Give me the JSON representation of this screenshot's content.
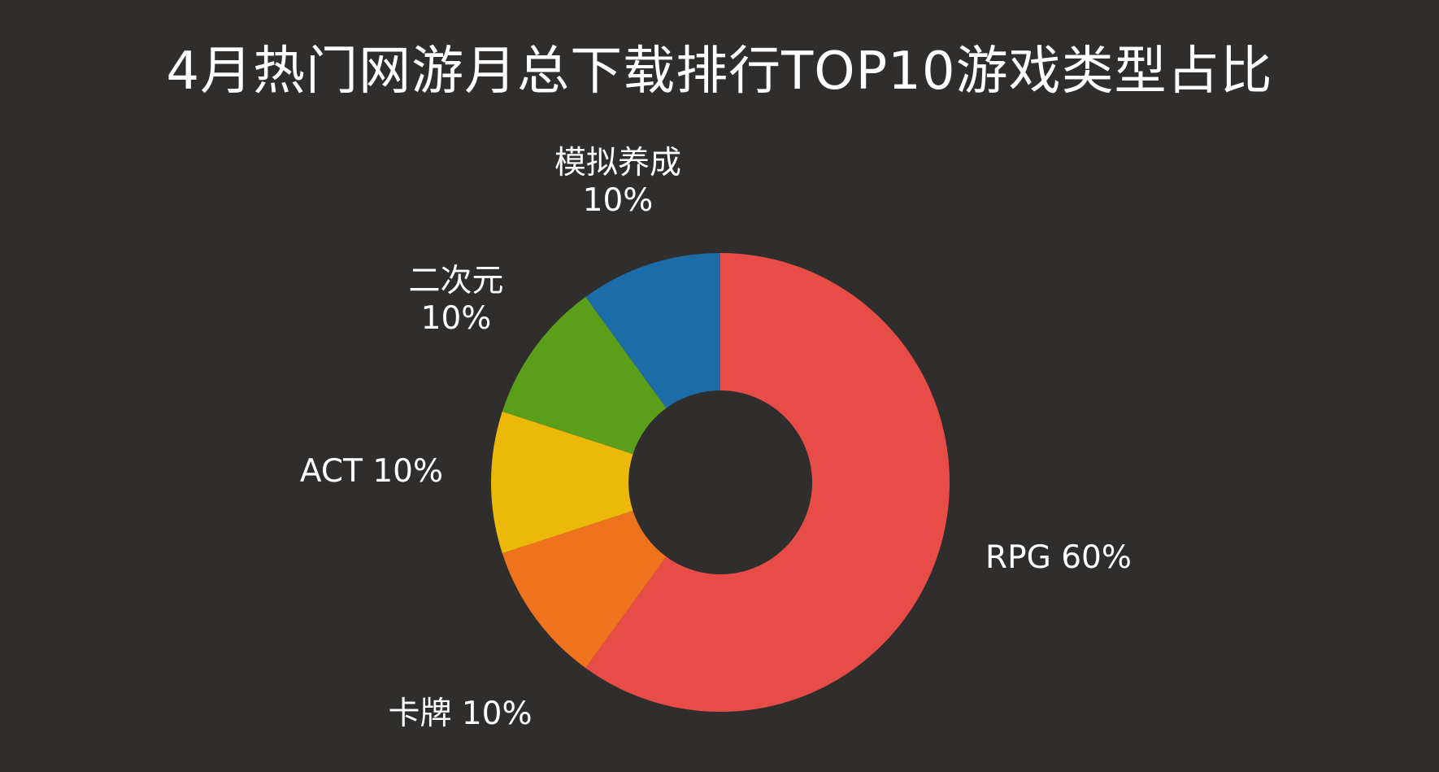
{
  "chart_data": {
    "type": "pie",
    "title": "4月热门网游月总下载排行TOP10游戏类型占比",
    "subtitle": "",
    "donut": true,
    "slices": [
      {
        "name": "RPG",
        "value": 60,
        "label": "60%",
        "color": "#e84c46",
        "label_lines": [
          "RPG 60%"
        ]
      },
      {
        "name": "卡牌",
        "value": 10,
        "label": "10%",
        "color": "#ee731c",
        "label_lines": [
          "卡牌 10%"
        ]
      },
      {
        "name": "ACT",
        "value": 10,
        "label": "10%",
        "color": "#ecb90a",
        "label_lines": [
          "ACT 10%"
        ]
      },
      {
        "name": "二次元",
        "value": 10,
        "label": "10%",
        "color": "#5a9e1a",
        "label_lines": [
          "二次元",
          "10%"
        ]
      },
      {
        "name": "模拟养成",
        "value": 10,
        "label": "10%",
        "color": "#1b6ca7",
        "label_lines": [
          "模拟养成",
          "10%"
        ]
      }
    ],
    "legend": "none"
  }
}
